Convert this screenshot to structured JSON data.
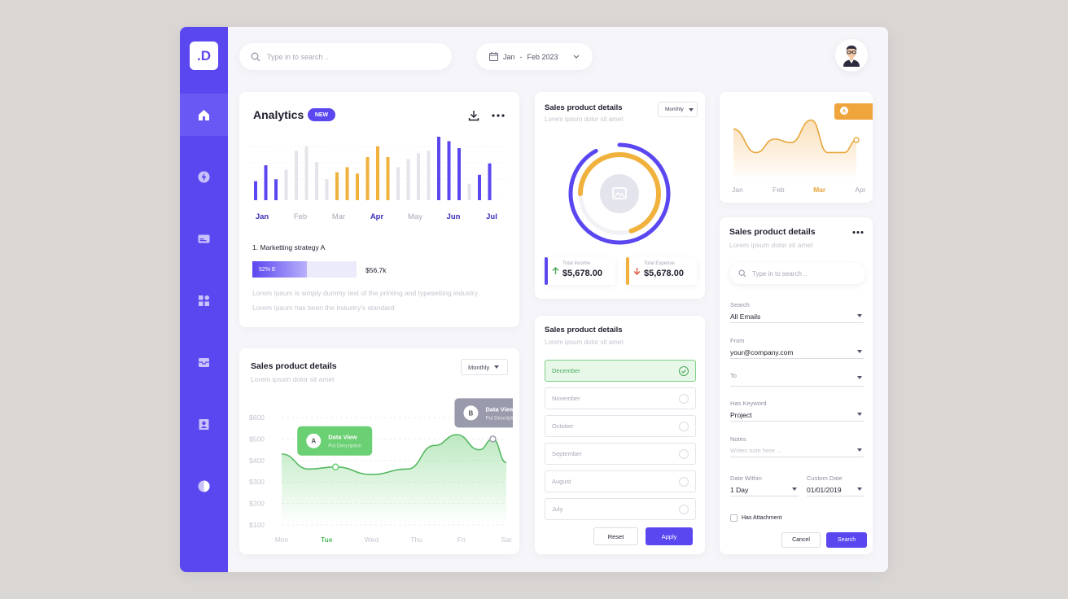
{
  "brand": {
    "logo_text": ".D",
    "accent": "#5b47f0",
    "orange": "#f0b13d",
    "green": "#6bcf74"
  },
  "sidebar": {
    "items": [
      {
        "icon": "home-icon",
        "active": true
      },
      {
        "icon": "bolt-icon"
      },
      {
        "icon": "card-icon"
      },
      {
        "icon": "grid-icon"
      },
      {
        "icon": "inbox-icon"
      },
      {
        "icon": "contacts-icon"
      },
      {
        "icon": "contrast-icon"
      }
    ]
  },
  "topbar": {
    "search_placeholder": "Type in to search ..",
    "date_from": "Jan",
    "date_sep": "-",
    "date_to": "Feb 2023"
  },
  "analytics": {
    "title": "Analytics",
    "badge": "NEW",
    "month_labels": [
      "Jan",
      "Feb",
      "Mar",
      "Apr",
      "May",
      "Jun",
      "Jul"
    ],
    "strategy_title": "1. Marketting strategy A",
    "progress_label": "52% E",
    "progress_value": 0.52,
    "progress_amount": "$56,7k",
    "description": "Lorem Ipsum is simply dummy text of the printing and typesetting industry. Lorem Ipsum has been the industry's standard"
  },
  "donut_card": {
    "title": "Sales product details",
    "subtitle": "Lorem ipsum dolor sit amet",
    "select_value": "Monthly",
    "income_label": "Total Income",
    "income_value": "$5,678.00",
    "expense_label": "Total Expense",
    "expense_value": "$5,678.00"
  },
  "mini_chart": {
    "labels": [
      "Jan",
      "Feb",
      "Mar",
      "Apr"
    ],
    "active_label": "Mar",
    "tooltip_letter": "A"
  },
  "line_card": {
    "title": "Sales product details",
    "subtitle": "Lorem ipsum dolor sit amet",
    "select_value": "Monthly",
    "tooltip_a": {
      "letter": "A",
      "title": "Data View",
      "sub": "Put Description"
    },
    "tooltip_b": {
      "letter": "B",
      "title": "Data View",
      "sub": "Put Description"
    }
  },
  "month_card": {
    "title": "Sales product details",
    "subtitle": "Lorem ipsum dolor sit amet",
    "months": [
      "December",
      "November",
      "October",
      "September",
      "August",
      "July"
    ],
    "selected": "December",
    "reset_label": "Reset",
    "apply_label": "Apply"
  },
  "filter_card": {
    "title": "Sales product details",
    "subtitle": "Lorem ipsum dolor sit amet",
    "search_placeholder": "Type in to search ..",
    "search_label": "Search",
    "search_value": "All Emails",
    "from_label": "From",
    "from_value": "your@company.com",
    "to_label": "To",
    "to_value": "",
    "keyword_label": "Has Keyword",
    "keyword_value": "Project",
    "notes_label": "Notes",
    "notes_placeholder": "Writes note here ...",
    "date_within_label": "Date Within",
    "date_within_value": "1 Day",
    "custom_date_label": "Custom Date",
    "custom_date_value": "01/01/2019",
    "attachment_label": "Has Attachment",
    "cancel_label": "Cancel",
    "search_button_label": "Search"
  },
  "chart_data": [
    {
      "type": "bar",
      "title": "Analytics",
      "xlabel": "",
      "ylabel": "",
      "categories": [
        "Jan",
        "Feb",
        "Mar",
        "Apr",
        "May",
        "Jun",
        "Jul"
      ],
      "bar_groups": [
        [
          {
            "v": 0.3,
            "c": "purple"
          },
          {
            "v": 0.55,
            "c": "purple"
          },
          {
            "v": 0.33,
            "c": "purple"
          },
          {
            "v": 0.48,
            "c": "gray"
          }
        ],
        [
          {
            "v": 0.78,
            "c": "gray"
          },
          {
            "v": 0.85,
            "c": "gray"
          },
          {
            "v": 0.6,
            "c": "gray"
          },
          {
            "v": 0.33,
            "c": "gray"
          }
        ],
        [
          {
            "v": 0.44,
            "c": "orange"
          },
          {
            "v": 0.52,
            "c": "orange"
          },
          {
            "v": 0.42,
            "c": "orange"
          },
          {
            "v": 0.68,
            "c": "orange"
          }
        ],
        [
          {
            "v": 0.85,
            "c": "orange"
          },
          {
            "v": 0.68,
            "c": "orange"
          },
          {
            "v": 0.52,
            "c": "gray"
          },
          {
            "v": 0.65,
            "c": "gray"
          }
        ],
        [
          {
            "v": 0.74,
            "c": "gray"
          },
          {
            "v": 0.78,
            "c": "gray"
          },
          {
            "v": 1.0,
            "c": "purple"
          },
          {
            "v": 0.93,
            "c": "purple"
          }
        ],
        [
          {
            "v": 0.82,
            "c": "purple"
          },
          {
            "v": 0.26,
            "c": "gray"
          },
          {
            "v": 0.4,
            "c": "purple"
          },
          {
            "v": 0.58,
            "c": "purple"
          }
        ]
      ],
      "bold_labels": [
        "Jan",
        "Apr",
        "Jun",
        "Jul"
      ]
    },
    {
      "type": "area",
      "title": "Sales product details",
      "categories": [
        "Mon",
        "Tue",
        "Wed",
        "Thu",
        "Fri",
        "Sat"
      ],
      "y_ticks": [
        "$600",
        "$500",
        "$400",
        "$300",
        "$200",
        "$100"
      ],
      "ylim": [
        100,
        600
      ],
      "active_category": "Tue",
      "points": [
        [
          0,
          430
        ],
        [
          0.6,
          360
        ],
        [
          1.2,
          370
        ],
        [
          2.0,
          335
        ],
        [
          2.8,
          360
        ],
        [
          3.4,
          470
        ],
        [
          3.9,
          520
        ],
        [
          4.4,
          450
        ],
        [
          4.7,
          500
        ],
        [
          5.0,
          390
        ]
      ],
      "marker_a_x": 1.2,
      "marker_b_x": 4.7
    },
    {
      "type": "pie",
      "title": "Sales product details",
      "series": [
        {
          "name": "Total Income",
          "value": 0.92,
          "color": "#5b47f0"
        },
        {
          "name": "Total Expense",
          "value": 0.7,
          "color": "#f0b13d"
        }
      ]
    },
    {
      "type": "area",
      "categories": [
        "Jan",
        "Feb",
        "Mar",
        "Apr"
      ],
      "points": [
        [
          0,
          0.82
        ],
        [
          0.55,
          0.35
        ],
        [
          1.0,
          0.62
        ],
        [
          1.4,
          0.55
        ],
        [
          1.9,
          1.0
        ],
        [
          2.3,
          0.35
        ],
        [
          2.7,
          0.35
        ],
        [
          3.0,
          0.6
        ]
      ]
    }
  ]
}
